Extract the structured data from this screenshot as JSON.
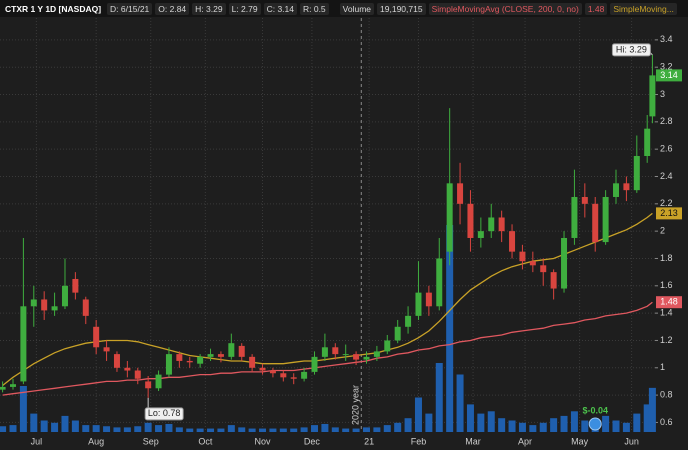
{
  "chart_data": {
    "type": "candlestick",
    "title": "CTXR 1 Y 1D [NASDAQ]",
    "header": [
      "D: 6/15/21",
      "O: 2.84",
      "H: 3.29",
      "L: 2.79",
      "C: 3.14",
      "R: 0.5"
    ],
    "xlim": [
      -1,
      251
    ],
    "xticks": [
      {
        "value": 13,
        "label": "Jul"
      },
      {
        "value": 36,
        "label": "Aug"
      },
      {
        "value": 57,
        "label": "Sep"
      },
      {
        "value": 78,
        "label": "Oct"
      },
      {
        "value": 100,
        "label": "Nov"
      },
      {
        "value": 119,
        "label": "Dec"
      },
      {
        "value": 141,
        "label": "21"
      },
      {
        "value": 160,
        "label": "Feb"
      },
      {
        "value": 181,
        "label": "Mar"
      },
      {
        "value": 201,
        "label": "Apr"
      },
      {
        "value": 222,
        "label": "May"
      },
      {
        "value": 242,
        "label": "Jun"
      }
    ],
    "ylim": [
      0.53,
      3.56
    ],
    "yticks": [
      0.6,
      0.8,
      1,
      1.2,
      1.4,
      1.6,
      1.8,
      2,
      2.2,
      2.4,
      2.6,
      2.8,
      3,
      3.2,
      3.4
    ],
    "grid": true,
    "up_color": "#3fae3f",
    "down_color": "#d9453f",
    "candles": {
      "x": [
        0,
        4,
        8,
        12,
        16,
        20,
        24,
        28,
        32,
        36,
        40,
        44,
        48,
        52,
        56,
        60,
        64,
        68,
        72,
        76,
        80,
        84,
        88,
        92,
        96,
        100,
        104,
        108,
        112,
        116,
        120,
        124,
        128,
        132,
        136,
        140,
        144,
        148,
        152,
        156,
        160,
        164,
        168,
        172,
        176,
        180,
        184,
        188,
        192,
        196,
        200,
        204,
        208,
        212,
        216,
        220,
        224,
        228,
        232,
        236,
        240,
        244,
        248,
        250
      ],
      "open": [
        0.84,
        0.86,
        0.9,
        1.45,
        1.5,
        1.42,
        1.45,
        1.65,
        1.5,
        1.3,
        1.15,
        1.1,
        1.0,
        0.98,
        0.9,
        0.85,
        0.95,
        1.1,
        1.05,
        1.03,
        1.08,
        1.1,
        1.08,
        1.16,
        1.08,
        1.0,
        0.98,
        0.96,
        0.93,
        0.92,
        0.97,
        1.08,
        1.15,
        1.1,
        1.1,
        1.06,
        1.08,
        1.12,
        1.2,
        1.3,
        1.38,
        1.55,
        1.45,
        1.85,
        2.35,
        2.2,
        1.95,
        2.0,
        2.1,
        2.0,
        1.85,
        1.78,
        1.75,
        1.7,
        1.58,
        1.95,
        2.25,
        2.2,
        1.92,
        2.25,
        2.35,
        2.3,
        2.55,
        2.84
      ],
      "high": [
        0.9,
        0.92,
        1.95,
        1.6,
        1.56,
        1.55,
        1.8,
        1.7,
        1.52,
        1.35,
        1.2,
        1.12,
        1.05,
        1.0,
        0.94,
        0.98,
        1.15,
        1.12,
        1.08,
        1.1,
        1.14,
        1.12,
        1.25,
        1.18,
        1.1,
        1.03,
        1.0,
        0.98,
        0.96,
        1.0,
        1.12,
        1.25,
        1.18,
        1.17,
        1.12,
        1.12,
        1.16,
        1.24,
        1.35,
        1.45,
        1.78,
        1.6,
        1.95,
        2.9,
        2.5,
        2.3,
        2.1,
        2.2,
        2.15,
        2.05,
        1.9,
        1.85,
        1.8,
        1.72,
        2.0,
        2.45,
        2.35,
        2.25,
        2.3,
        2.45,
        2.4,
        2.7,
        2.85,
        3.29
      ],
      "low": [
        0.82,
        0.84,
        0.88,
        1.3,
        1.35,
        1.38,
        1.43,
        1.5,
        1.32,
        1.1,
        1.05,
        0.97,
        0.93,
        0.88,
        0.78,
        0.83,
        0.93,
        1.0,
        1.0,
        1.0,
        1.05,
        1.04,
        1.06,
        1.05,
        0.97,
        0.95,
        0.93,
        0.9,
        0.88,
        0.9,
        0.95,
        1.05,
        1.06,
        1.05,
        1.02,
        1.03,
        1.05,
        1.1,
        1.18,
        1.25,
        1.35,
        1.38,
        1.42,
        1.75,
        2.05,
        1.85,
        1.88,
        1.95,
        1.92,
        1.8,
        1.72,
        1.7,
        1.6,
        1.5,
        1.55,
        1.9,
        2.1,
        1.85,
        1.9,
        2.2,
        2.22,
        2.28,
        2.5,
        2.79
      ],
      "close": [
        0.86,
        0.88,
        1.45,
        1.5,
        1.42,
        1.45,
        1.6,
        1.55,
        1.38,
        1.15,
        1.12,
        1.0,
        0.98,
        0.92,
        0.85,
        0.95,
        1.1,
        1.05,
        1.04,
        1.08,
        1.1,
        1.08,
        1.18,
        1.08,
        1.0,
        0.98,
        0.96,
        0.93,
        0.92,
        0.97,
        1.08,
        1.15,
        1.1,
        1.1,
        1.06,
        1.08,
        1.12,
        1.2,
        1.3,
        1.38,
        1.55,
        1.45,
        1.8,
        2.35,
        2.2,
        1.95,
        2.0,
        2.1,
        2.0,
        1.85,
        1.78,
        1.75,
        1.7,
        1.58,
        1.95,
        2.25,
        2.2,
        1.92,
        2.25,
        2.35,
        2.3,
        2.55,
        2.75,
        3.14
      ]
    },
    "volume": {
      "name": "Volume",
      "last_value_label": "19,190,715",
      "color": "#1f5fae",
      "ylim": [
        0,
        180000000
      ],
      "values": [
        2500000,
        3000000,
        20000000,
        8000000,
        5000000,
        4000000,
        7000000,
        5000000,
        3000000,
        3000000,
        2500000,
        2000000,
        2000000,
        2500000,
        4000000,
        3000000,
        3500000,
        2000000,
        1500000,
        1500000,
        1500000,
        1500000,
        3000000,
        2000000,
        1500000,
        1500000,
        1500000,
        1500000,
        1500000,
        2000000,
        3000000,
        3500000,
        2000000,
        1500000,
        1500000,
        2000000,
        2000000,
        3000000,
        4000000,
        6000000,
        15000000,
        8000000,
        30000000,
        90000000,
        25000000,
        12000000,
        8000000,
        9000000,
        6000000,
        5000000,
        4000000,
        3000000,
        4000000,
        6000000,
        7000000,
        9000000,
        5000000,
        6000000,
        7000000,
        5000000,
        4000000,
        8000000,
        12000000,
        19190715
      ]
    },
    "series": [
      {
        "name": "SimpleMoving...",
        "color": "#c9a227",
        "values": [
          0.87,
          0.93,
          0.98,
          1.03,
          1.07,
          1.11,
          1.14,
          1.16,
          1.18,
          1.19,
          1.2,
          1.2,
          1.2,
          1.19,
          1.17,
          1.15,
          1.13,
          1.11,
          1.09,
          1.08,
          1.07,
          1.06,
          1.05,
          1.05,
          1.04,
          1.03,
          1.03,
          1.03,
          1.04,
          1.05,
          1.05,
          1.06,
          1.07,
          1.08,
          1.09,
          1.1,
          1.11,
          1.13,
          1.15,
          1.18,
          1.22,
          1.27,
          1.34,
          1.42,
          1.5,
          1.57,
          1.62,
          1.67,
          1.71,
          1.74,
          1.76,
          1.78,
          1.79,
          1.8,
          1.83,
          1.86,
          1.89,
          1.92,
          1.95,
          1.98,
          2.01,
          2.05,
          2.1,
          2.13
        ]
      },
      {
        "name": "SimpleMovingAvg (CLOSE, 200, 0, no)",
        "color": "#e0585f",
        "values": [
          0.8,
          0.81,
          0.82,
          0.83,
          0.84,
          0.85,
          0.86,
          0.87,
          0.88,
          0.89,
          0.9,
          0.9,
          0.91,
          0.91,
          0.92,
          0.92,
          0.93,
          0.93,
          0.94,
          0.95,
          0.95,
          0.96,
          0.96,
          0.97,
          0.97,
          0.97,
          0.98,
          0.98,
          0.98,
          0.99,
          1.0,
          1.01,
          1.02,
          1.03,
          1.04,
          1.05,
          1.07,
          1.08,
          1.1,
          1.11,
          1.13,
          1.14,
          1.16,
          1.17,
          1.19,
          1.2,
          1.22,
          1.23,
          1.24,
          1.26,
          1.27,
          1.28,
          1.29,
          1.31,
          1.32,
          1.33,
          1.35,
          1.36,
          1.38,
          1.39,
          1.4,
          1.42,
          1.45,
          1.48
        ]
      }
    ],
    "hi_label": "Hi: 3.29",
    "lo_label": "Lo: 0.78",
    "year_marker": {
      "x": 138,
      "text": "2020 year"
    },
    "earnings": {
      "x": 228,
      "text": "$-0.04"
    }
  }
}
